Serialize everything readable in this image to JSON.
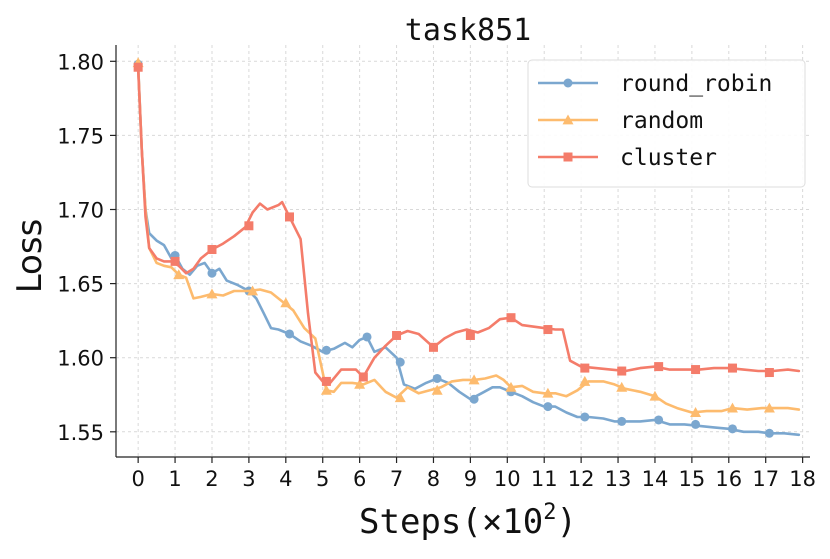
{
  "chart_data": {
    "type": "line",
    "title": "task851",
    "xlabel": "Steps(×10",
    "xlabel_sup": "2",
    "xlabel_close": ")",
    "ylabel": "Loss",
    "xlim": [
      -0.6,
      18.2
    ],
    "ylim": [
      1.533,
      1.811
    ],
    "xticks": [
      0,
      1,
      2,
      3,
      4,
      5,
      6,
      7,
      8,
      9,
      10,
      11,
      12,
      13,
      14,
      15,
      16,
      17,
      18
    ],
    "yticks": [
      1.55,
      1.6,
      1.65,
      1.7,
      1.75,
      1.8
    ],
    "ytick_labels": [
      "1.55",
      "1.60",
      "1.65",
      "1.70",
      "1.75",
      "1.80"
    ],
    "grid": true,
    "legend_position": "top-right",
    "series": [
      {
        "name": "round_robin",
        "color": "#7ba7cf",
        "marker": "circle",
        "points": [
          [
            0,
            1.798
          ],
          [
            0.1,
            1.74
          ],
          [
            0.2,
            1.7
          ],
          [
            0.3,
            1.684
          ],
          [
            0.5,
            1.679
          ],
          [
            0.7,
            1.676
          ],
          [
            0.9,
            1.667
          ],
          [
            1.0,
            1.669
          ],
          [
            1.2,
            1.66
          ],
          [
            1.4,
            1.656
          ],
          [
            1.6,
            1.662
          ],
          [
            1.8,
            1.664
          ],
          [
            2.0,
            1.657
          ],
          [
            2.2,
            1.66
          ],
          [
            2.4,
            1.652
          ],
          [
            2.7,
            1.649
          ],
          [
            3.0,
            1.645
          ],
          [
            3.2,
            1.64
          ],
          [
            3.4,
            1.63
          ],
          [
            3.6,
            1.62
          ],
          [
            3.8,
            1.619
          ],
          [
            4.1,
            1.616
          ],
          [
            4.4,
            1.611
          ],
          [
            4.7,
            1.608
          ],
          [
            5.0,
            1.604
          ],
          [
            5.3,
            1.606
          ],
          [
            5.6,
            1.61
          ],
          [
            5.8,
            1.607
          ],
          [
            6.0,
            1.612
          ],
          [
            6.2,
            1.614
          ],
          [
            6.4,
            1.604
          ],
          [
            6.7,
            1.607
          ],
          [
            7.0,
            1.6
          ],
          [
            7.2,
            1.582
          ],
          [
            7.5,
            1.579
          ],
          [
            7.8,
            1.583
          ],
          [
            8.1,
            1.586
          ],
          [
            8.4,
            1.583
          ],
          [
            8.7,
            1.577
          ],
          [
            9.0,
            1.572
          ],
          [
            9.3,
            1.576
          ],
          [
            9.6,
            1.58
          ],
          [
            9.8,
            1.58
          ],
          [
            10.1,
            1.577
          ],
          [
            10.4,
            1.574
          ],
          [
            10.7,
            1.57
          ],
          [
            11.0,
            1.567
          ],
          [
            11.3,
            1.567
          ],
          [
            11.6,
            1.563
          ],
          [
            11.9,
            1.56
          ],
          [
            12.2,
            1.56
          ],
          [
            12.6,
            1.559
          ],
          [
            12.9,
            1.557
          ],
          [
            13.2,
            1.557
          ],
          [
            13.6,
            1.557
          ],
          [
            14.0,
            1.558
          ],
          [
            14.4,
            1.555
          ],
          [
            14.8,
            1.555
          ],
          [
            15.2,
            1.554
          ],
          [
            15.6,
            1.553
          ],
          [
            16.0,
            1.552
          ],
          [
            16.4,
            1.55
          ],
          [
            16.8,
            1.55
          ],
          [
            17.1,
            1.549
          ],
          [
            17.5,
            1.549
          ],
          [
            17.9,
            1.548
          ]
        ],
        "marker_points": [
          [
            0,
            1.798
          ],
          [
            1.0,
            1.669
          ],
          [
            2.0,
            1.657
          ],
          [
            3.0,
            1.645
          ],
          [
            4.1,
            1.616
          ],
          [
            5.1,
            1.605
          ],
          [
            6.2,
            1.614
          ],
          [
            7.1,
            1.597
          ],
          [
            8.1,
            1.586
          ],
          [
            9.1,
            1.572
          ],
          [
            10.1,
            1.577
          ],
          [
            11.1,
            1.567
          ],
          [
            12.1,
            1.56
          ],
          [
            13.1,
            1.557
          ],
          [
            14.1,
            1.558
          ],
          [
            15.1,
            1.555
          ],
          [
            16.1,
            1.552
          ],
          [
            17.1,
            1.549
          ]
        ]
      },
      {
        "name": "random",
        "color": "#fdbb6e",
        "marker": "triangle",
        "points": [
          [
            0,
            1.798
          ],
          [
            0.1,
            1.74
          ],
          [
            0.2,
            1.7
          ],
          [
            0.3,
            1.674
          ],
          [
            0.5,
            1.664
          ],
          [
            0.7,
            1.662
          ],
          [
            0.9,
            1.661
          ],
          [
            1.1,
            1.656
          ],
          [
            1.3,
            1.654
          ],
          [
            1.5,
            1.64
          ],
          [
            1.7,
            1.641
          ],
          [
            2.0,
            1.643
          ],
          [
            2.3,
            1.642
          ],
          [
            2.6,
            1.645
          ],
          [
            3.0,
            1.645
          ],
          [
            3.3,
            1.646
          ],
          [
            3.6,
            1.644
          ],
          [
            3.9,
            1.638
          ],
          [
            4.2,
            1.632
          ],
          [
            4.5,
            1.62
          ],
          [
            4.8,
            1.613
          ],
          [
            5.0,
            1.59
          ],
          [
            5.1,
            1.578
          ],
          [
            5.3,
            1.577
          ],
          [
            5.5,
            1.583
          ],
          [
            5.8,
            1.583
          ],
          [
            6.1,
            1.582
          ],
          [
            6.4,
            1.585
          ],
          [
            6.7,
            1.577
          ],
          [
            7.0,
            1.573
          ],
          [
            7.3,
            1.58
          ],
          [
            7.6,
            1.576
          ],
          [
            7.9,
            1.578
          ],
          [
            8.2,
            1.58
          ],
          [
            8.5,
            1.584
          ],
          [
            8.8,
            1.585
          ],
          [
            9.1,
            1.585
          ],
          [
            9.4,
            1.586
          ],
          [
            9.7,
            1.588
          ],
          [
            9.9,
            1.585
          ],
          [
            10.1,
            1.58
          ],
          [
            10.4,
            1.581
          ],
          [
            10.7,
            1.577
          ],
          [
            11.0,
            1.576
          ],
          [
            11.3,
            1.576
          ],
          [
            11.6,
            1.574
          ],
          [
            11.9,
            1.578
          ],
          [
            12.2,
            1.584
          ],
          [
            12.6,
            1.584
          ],
          [
            12.9,
            1.582
          ],
          [
            13.2,
            1.579
          ],
          [
            13.6,
            1.577
          ],
          [
            14.0,
            1.574
          ],
          [
            14.3,
            1.569
          ],
          [
            14.6,
            1.566
          ],
          [
            15.0,
            1.563
          ],
          [
            15.4,
            1.564
          ],
          [
            15.8,
            1.564
          ],
          [
            16.1,
            1.566
          ],
          [
            16.5,
            1.565
          ],
          [
            16.9,
            1.566
          ],
          [
            17.3,
            1.566
          ],
          [
            17.6,
            1.566
          ],
          [
            17.9,
            1.565
          ]
        ],
        "marker_points": [
          [
            0,
            1.799
          ],
          [
            1.1,
            1.656
          ],
          [
            2.0,
            1.643
          ],
          [
            3.1,
            1.645
          ],
          [
            4.0,
            1.637
          ],
          [
            5.1,
            1.578
          ],
          [
            6.0,
            1.582
          ],
          [
            7.1,
            1.573
          ],
          [
            8.1,
            1.578
          ],
          [
            9.1,
            1.585
          ],
          [
            10.1,
            1.58
          ],
          [
            11.1,
            1.576
          ],
          [
            12.1,
            1.584
          ],
          [
            13.1,
            1.58
          ],
          [
            14.0,
            1.574
          ],
          [
            15.1,
            1.563
          ],
          [
            16.1,
            1.566
          ],
          [
            17.1,
            1.566
          ]
        ]
      },
      {
        "name": "cluster",
        "color": "#f47c6a",
        "marker": "square",
        "points": [
          [
            0,
            1.796
          ],
          [
            0.1,
            1.74
          ],
          [
            0.2,
            1.695
          ],
          [
            0.3,
            1.674
          ],
          [
            0.5,
            1.667
          ],
          [
            0.7,
            1.665
          ],
          [
            0.9,
            1.665
          ],
          [
            1.1,
            1.662
          ],
          [
            1.3,
            1.657
          ],
          [
            1.5,
            1.66
          ],
          [
            1.7,
            1.667
          ],
          [
            2.0,
            1.673
          ],
          [
            2.3,
            1.677
          ],
          [
            2.6,
            1.682
          ],
          [
            2.9,
            1.688
          ],
          [
            3.1,
            1.698
          ],
          [
            3.3,
            1.704
          ],
          [
            3.5,
            1.7
          ],
          [
            3.8,
            1.703
          ],
          [
            3.9,
            1.705
          ],
          [
            4.1,
            1.695
          ],
          [
            4.4,
            1.68
          ],
          [
            4.6,
            1.63
          ],
          [
            4.8,
            1.59
          ],
          [
            5.0,
            1.584
          ],
          [
            5.2,
            1.583
          ],
          [
            5.5,
            1.592
          ],
          [
            5.9,
            1.592
          ],
          [
            6.1,
            1.587
          ],
          [
            6.4,
            1.6
          ],
          [
            6.7,
            1.608
          ],
          [
            7.0,
            1.615
          ],
          [
            7.3,
            1.618
          ],
          [
            7.6,
            1.616
          ],
          [
            8.0,
            1.607
          ],
          [
            8.3,
            1.613
          ],
          [
            8.6,
            1.617
          ],
          [
            8.9,
            1.619
          ],
          [
            9.2,
            1.617
          ],
          [
            9.5,
            1.62
          ],
          [
            9.8,
            1.626
          ],
          [
            10.1,
            1.627
          ],
          [
            10.4,
            1.622
          ],
          [
            10.7,
            1.621
          ],
          [
            11.0,
            1.62
          ],
          [
            11.3,
            1.619
          ],
          [
            11.5,
            1.619
          ],
          [
            11.7,
            1.598
          ],
          [
            12.0,
            1.594
          ],
          [
            12.4,
            1.593
          ],
          [
            12.8,
            1.592
          ],
          [
            13.2,
            1.591
          ],
          [
            13.6,
            1.593
          ],
          [
            14.0,
            1.594
          ],
          [
            14.4,
            1.592
          ],
          [
            14.8,
            1.592
          ],
          [
            15.2,
            1.592
          ],
          [
            15.6,
            1.593
          ],
          [
            16.0,
            1.593
          ],
          [
            16.4,
            1.592
          ],
          [
            16.8,
            1.591
          ],
          [
            17.2,
            1.591
          ],
          [
            17.6,
            1.592
          ],
          [
            17.9,
            1.591
          ]
        ],
        "marker_points": [
          [
            0,
            1.796
          ],
          [
            1.0,
            1.665
          ],
          [
            2.0,
            1.673
          ],
          [
            3.0,
            1.689
          ],
          [
            4.1,
            1.695
          ],
          [
            5.1,
            1.584
          ],
          [
            6.1,
            1.587
          ],
          [
            7.0,
            1.615
          ],
          [
            8.0,
            1.607
          ],
          [
            9.0,
            1.615
          ],
          [
            10.1,
            1.627
          ],
          [
            11.1,
            1.619
          ],
          [
            12.1,
            1.593
          ],
          [
            13.1,
            1.591
          ],
          [
            14.1,
            1.594
          ],
          [
            15.1,
            1.592
          ],
          [
            16.1,
            1.593
          ],
          [
            17.1,
            1.59
          ]
        ]
      }
    ]
  }
}
